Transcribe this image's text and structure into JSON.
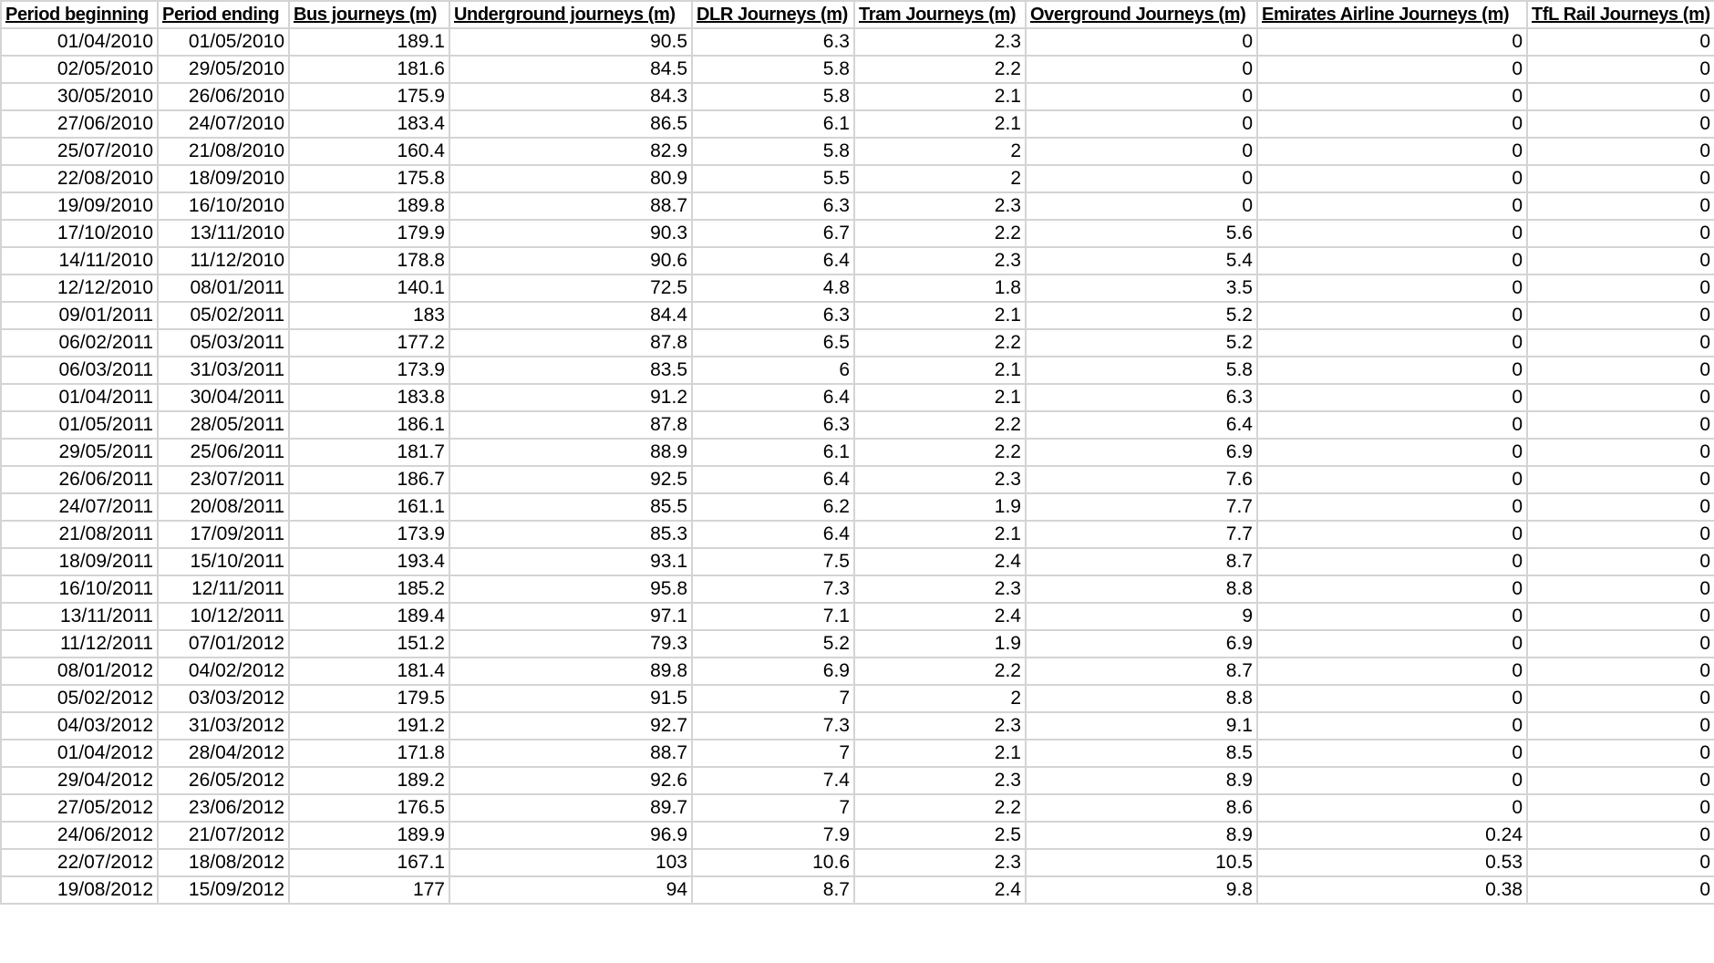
{
  "columns": [
    "Period beginning",
    "Period ending",
    "Bus journeys (m)",
    "Underground journeys (m)",
    "DLR Journeys (m)",
    "Tram Journeys (m)",
    "Overground Journeys (m)",
    "Emirates Airline Journeys (m)",
    "TfL Rail Journeys (m)"
  ],
  "rows": [
    [
      "01/04/2010",
      "01/05/2010",
      "189.1",
      "90.5",
      "6.3",
      "2.3",
      "0",
      "0",
      "0"
    ],
    [
      "02/05/2010",
      "29/05/2010",
      "181.6",
      "84.5",
      "5.8",
      "2.2",
      "0",
      "0",
      "0"
    ],
    [
      "30/05/2010",
      "26/06/2010",
      "175.9",
      "84.3",
      "5.8",
      "2.1",
      "0",
      "0",
      "0"
    ],
    [
      "27/06/2010",
      "24/07/2010",
      "183.4",
      "86.5",
      "6.1",
      "2.1",
      "0",
      "0",
      "0"
    ],
    [
      "25/07/2010",
      "21/08/2010",
      "160.4",
      "82.9",
      "5.8",
      "2",
      "0",
      "0",
      "0"
    ],
    [
      "22/08/2010",
      "18/09/2010",
      "175.8",
      "80.9",
      "5.5",
      "2",
      "0",
      "0",
      "0"
    ],
    [
      "19/09/2010",
      "16/10/2010",
      "189.8",
      "88.7",
      "6.3",
      "2.3",
      "0",
      "0",
      "0"
    ],
    [
      "17/10/2010",
      "13/11/2010",
      "179.9",
      "90.3",
      "6.7",
      "2.2",
      "5.6",
      "0",
      "0"
    ],
    [
      "14/11/2010",
      "11/12/2010",
      "178.8",
      "90.6",
      "6.4",
      "2.3",
      "5.4",
      "0",
      "0"
    ],
    [
      "12/12/2010",
      "08/01/2011",
      "140.1",
      "72.5",
      "4.8",
      "1.8",
      "3.5",
      "0",
      "0"
    ],
    [
      "09/01/2011",
      "05/02/2011",
      "183",
      "84.4",
      "6.3",
      "2.1",
      "5.2",
      "0",
      "0"
    ],
    [
      "06/02/2011",
      "05/03/2011",
      "177.2",
      "87.8",
      "6.5",
      "2.2",
      "5.2",
      "0",
      "0"
    ],
    [
      "06/03/2011",
      "31/03/2011",
      "173.9",
      "83.5",
      "6",
      "2.1",
      "5.8",
      "0",
      "0"
    ],
    [
      "01/04/2011",
      "30/04/2011",
      "183.8",
      "91.2",
      "6.4",
      "2.1",
      "6.3",
      "0",
      "0"
    ],
    [
      "01/05/2011",
      "28/05/2011",
      "186.1",
      "87.8",
      "6.3",
      "2.2",
      "6.4",
      "0",
      "0"
    ],
    [
      "29/05/2011",
      "25/06/2011",
      "181.7",
      "88.9",
      "6.1",
      "2.2",
      "6.9",
      "0",
      "0"
    ],
    [
      "26/06/2011",
      "23/07/2011",
      "186.7",
      "92.5",
      "6.4",
      "2.3",
      "7.6",
      "0",
      "0"
    ],
    [
      "24/07/2011",
      "20/08/2011",
      "161.1",
      "85.5",
      "6.2",
      "1.9",
      "7.7",
      "0",
      "0"
    ],
    [
      "21/08/2011",
      "17/09/2011",
      "173.9",
      "85.3",
      "6.4",
      "2.1",
      "7.7",
      "0",
      "0"
    ],
    [
      "18/09/2011",
      "15/10/2011",
      "193.4",
      "93.1",
      "7.5",
      "2.4",
      "8.7",
      "0",
      "0"
    ],
    [
      "16/10/2011",
      "12/11/2011",
      "185.2",
      "95.8",
      "7.3",
      "2.3",
      "8.8",
      "0",
      "0"
    ],
    [
      "13/11/2011",
      "10/12/2011",
      "189.4",
      "97.1",
      "7.1",
      "2.4",
      "9",
      "0",
      "0"
    ],
    [
      "11/12/2011",
      "07/01/2012",
      "151.2",
      "79.3",
      "5.2",
      "1.9",
      "6.9",
      "0",
      "0"
    ],
    [
      "08/01/2012",
      "04/02/2012",
      "181.4",
      "89.8",
      "6.9",
      "2.2",
      "8.7",
      "0",
      "0"
    ],
    [
      "05/02/2012",
      "03/03/2012",
      "179.5",
      "91.5",
      "7",
      "2",
      "8.8",
      "0",
      "0"
    ],
    [
      "04/03/2012",
      "31/03/2012",
      "191.2",
      "92.7",
      "7.3",
      "2.3",
      "9.1",
      "0",
      "0"
    ],
    [
      "01/04/2012",
      "28/04/2012",
      "171.8",
      "88.7",
      "7",
      "2.1",
      "8.5",
      "0",
      "0"
    ],
    [
      "29/04/2012",
      "26/05/2012",
      "189.2",
      "92.6",
      "7.4",
      "2.3",
      "8.9",
      "0",
      "0"
    ],
    [
      "27/05/2012",
      "23/06/2012",
      "176.5",
      "89.7",
      "7",
      "2.2",
      "8.6",
      "0",
      "0"
    ],
    [
      "24/06/2012",
      "21/07/2012",
      "189.9",
      "96.9",
      "7.9",
      "2.5",
      "8.9",
      "0.24",
      "0"
    ],
    [
      "22/07/2012",
      "18/08/2012",
      "167.1",
      "103",
      "10.6",
      "2.3",
      "10.5",
      "0.53",
      "0"
    ],
    [
      "19/08/2012",
      "15/09/2012",
      "177",
      "94",
      "8.7",
      "2.4",
      "9.8",
      "0.38",
      "0"
    ]
  ]
}
